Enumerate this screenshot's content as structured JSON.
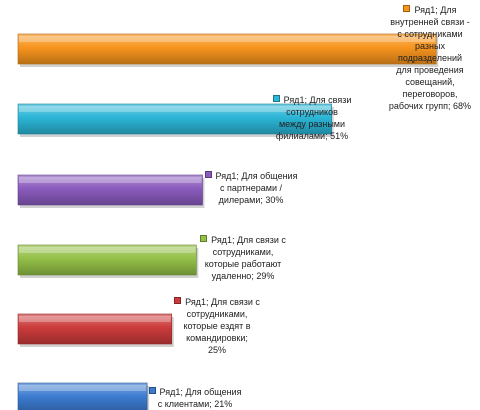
{
  "chart_data": {
    "type": "bar",
    "orientation": "horizontal",
    "grid": false,
    "legend": "none",
    "series_name": "Ряд1",
    "categories": [
      "Для внутренней связи - с сотрудниками разных подразделений для проведения совещаний, переговоров, рабочих групп",
      "Для связи сотрудников между разными филиалами",
      "Для общения с партнерами / дилерами",
      "Для связи с сотрудниками, которые работают удаленно",
      "Для связи с сотрудниками, которые ездят в командировки",
      "Для общения с клиентами"
    ],
    "values": [
      68,
      51,
      30,
      29,
      25,
      21
    ],
    "colors": [
      "#F7941D",
      "#2BB5D6",
      "#8A5BBE",
      "#93C047",
      "#CC3B3B",
      "#3C7BD0"
    ],
    "data_labels": [
      [
        "Ряд1; Для",
        "внутренней связи -",
        "с сотрудниками",
        "разных",
        "подразделений",
        "для проведения",
        "совещаний,",
        "переговоров,",
        "рабочих групп; 68%"
      ],
      [
        "Ряд1; Для связи",
        "сотрудников",
        "между разными",
        "филиалами; 51%"
      ],
      [
        "Ряд1; Для общения",
        "с партнерами /",
        "дилерами; 30%"
      ],
      [
        "Ряд1; Для связи с",
        "сотрудниками,",
        "которые работают",
        "удаленно; 29%"
      ],
      [
        "Ряд1; Для связи с",
        "сотрудниками,",
        "которые ездят в",
        "командировки;",
        "25%"
      ],
      [
        "Ряд1; Для общения",
        "с клиентами; 21%"
      ]
    ]
  }
}
